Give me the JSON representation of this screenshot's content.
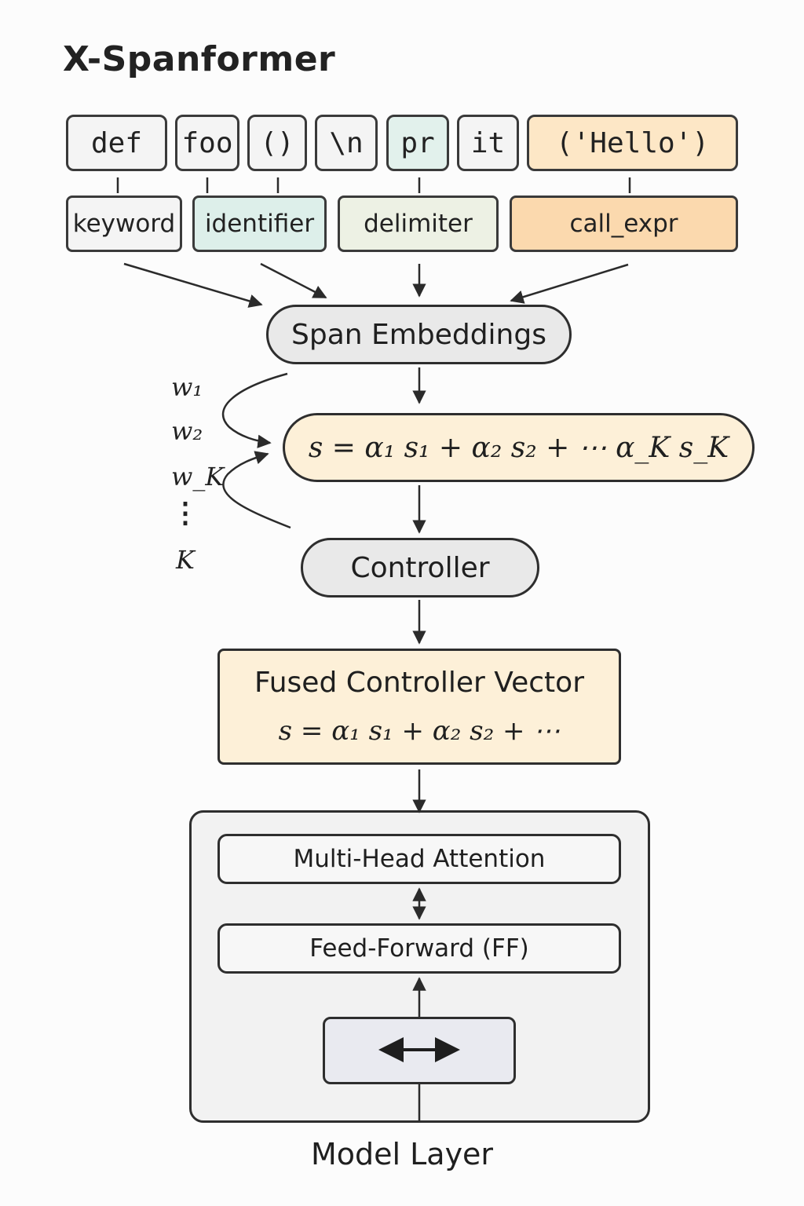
{
  "title": "X-Spanformer",
  "tokens": [
    {
      "text": "def"
    },
    {
      "text": "foo"
    },
    {
      "text": "()"
    },
    {
      "text": "\\n"
    },
    {
      "text": "pr"
    },
    {
      "text": "it"
    },
    {
      "text": "('Hello')"
    }
  ],
  "categories": [
    {
      "label": "keyword"
    },
    {
      "label": "identifier"
    },
    {
      "label": "delimiter"
    },
    {
      "label": "call_expr"
    }
  ],
  "span_embeddings": "Span Embeddings",
  "formula_top": "s = α₁ s₁ + α₂ s₂ + ⋯ α_K s_K",
  "weights": {
    "w1": "w₁",
    "w2": "w₂",
    "wK": "w_K",
    "dots": "⋮",
    "K": "K"
  },
  "controller": "Controller",
  "fused": {
    "title": "Fused Controller Vector",
    "formula": "s = α₁ s₁ + α₂ s₂ + ⋯"
  },
  "model": {
    "attention": "Multi-Head Attention",
    "feedforward": "Feed-Forward (FF)",
    "label": "Model Layer"
  },
  "colors": {
    "teal": "#e2f1ec",
    "orange": "#fde7c6",
    "cream": "#fdf0d8",
    "stroke": "#2e2e2e"
  }
}
